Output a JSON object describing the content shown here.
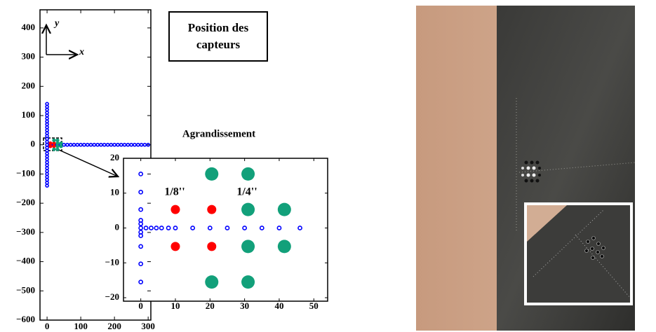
{
  "chart_data": [
    {
      "type": "scatter",
      "title": "Position des capteurs",
      "axis_arrows": [
        "x",
        "y"
      ],
      "xlim": [
        -21,
        308
      ],
      "ylim": [
        -600,
        462
      ],
      "xticks": [
        0,
        100,
        200,
        300
      ],
      "yticks": [
        400,
        300,
        200,
        100,
        0,
        {
          "value": -100,
          "label": "−100"
        },
        {
          "value": -200,
          "label": "−200"
        },
        {
          "value": -300,
          "label": "−300"
        },
        {
          "value": -400,
          "label": "−400"
        },
        {
          "value": -500,
          "label": "−500"
        },
        {
          "value": -600,
          "label": "−600"
        }
      ],
      "series": [
        {
          "color": "#0000ff",
          "marker": "open-circle",
          "marker_size": "tiny",
          "x": [
            0,
            0,
            0,
            0,
            0,
            0,
            0,
            0,
            0,
            0,
            0,
            0,
            0,
            0,
            0,
            0,
            0,
            0,
            0,
            0,
            0,
            0,
            0,
            0,
            0,
            0,
            0,
            0,
            0,
            10,
            20,
            30,
            40,
            50,
            60,
            70,
            80,
            90,
            100,
            110,
            120,
            130,
            140,
            150,
            160,
            170,
            180,
            190,
            200,
            210,
            220,
            230,
            240,
            250,
            260,
            270,
            280,
            290,
            300
          ],
          "y": [
            -140,
            -130,
            -120,
            -110,
            -100,
            -90,
            -80,
            -70,
            -60,
            -50,
            -40,
            -30,
            -20,
            -10,
            10,
            20,
            30,
            40,
            50,
            60,
            70,
            80,
            90,
            100,
            110,
            120,
            130,
            140,
            0,
            0,
            0,
            0,
            0,
            0,
            0,
            0,
            0,
            0,
            0,
            0,
            0,
            0,
            0,
            0,
            0,
            0,
            0,
            0,
            0,
            0,
            0,
            0,
            0,
            0,
            0,
            0,
            0,
            0,
            0
          ]
        },
        {
          "color": "#ff0000",
          "marker": "filled-circle",
          "marker_size": "small",
          "x": [
            10,
            20.5,
            10,
            20.5
          ],
          "y": [
            5.3,
            5.3,
            -5.3,
            -5.3
          ]
        },
        {
          "color": "#12a07a",
          "marker": "filled-circle",
          "marker_size": "small",
          "x": [
            20.5,
            31,
            31,
            41.5,
            31,
            41.5,
            20.5,
            31
          ],
          "y": [
            15.5,
            15.5,
            5.3,
            5.3,
            -5.3,
            -5.3,
            -15.5,
            -15.5
          ]
        }
      ]
    },
    {
      "type": "scatter",
      "title": "Agrandissement",
      "xlim": [
        -5,
        54
      ],
      "ylim": [
        -21,
        20
      ],
      "xticks": [
        0,
        10,
        20,
        30,
        40,
        50
      ],
      "yticks": [
        20,
        10,
        0,
        {
          "value": -10,
          "label": "−10"
        },
        {
          "value": -20,
          "label": "−20"
        }
      ],
      "series": [
        {
          "color": "#0000ff",
          "marker": "open-circle",
          "marker_size": "small",
          "x": [
            0,
            0,
            0,
            0,
            0,
            0,
            0,
            0,
            0,
            0,
            0,
            1.5,
            3,
            4.5,
            6,
            8,
            10,
            15,
            20,
            25,
            30,
            35,
            40,
            46
          ],
          "y": [
            15.5,
            10.3,
            5.3,
            2.2,
            1.2,
            0,
            -1.2,
            -2.2,
            -5.3,
            -10.3,
            -15.5,
            0,
            0,
            0,
            0,
            0,
            0,
            0,
            0,
            0,
            0,
            0,
            0,
            0
          ]
        },
        {
          "name": "1/8''",
          "color": "#ff0000",
          "marker": "filled-circle",
          "marker_size": "medium",
          "x": [
            10,
            20.5,
            10,
            20.5
          ],
          "y": [
            5.3,
            5.3,
            -5.3,
            -5.3
          ]
        },
        {
          "name": "1/4''",
          "color": "#12a07a",
          "marker": "filled-circle",
          "marker_size": "large",
          "x": [
            20.5,
            31,
            31,
            41.5,
            31,
            41.5,
            20.5,
            31
          ],
          "y": [
            15.5,
            15.5,
            5.3,
            5.3,
            -5.3,
            -5.3,
            -15.5,
            -15.5
          ]
        }
      ]
    }
  ]
}
